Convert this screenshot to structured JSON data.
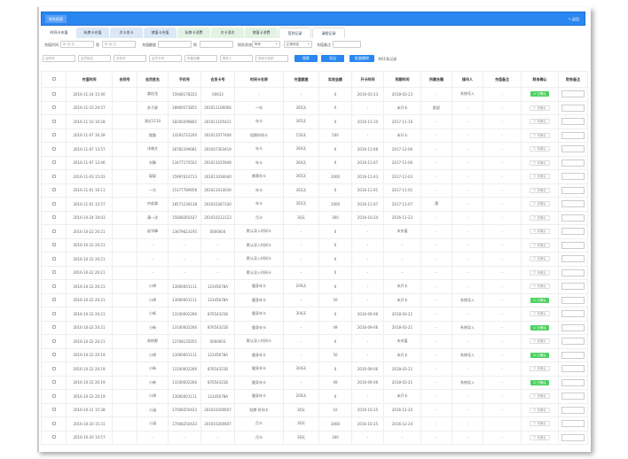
{
  "header": {
    "title": "财务报表",
    "back": "返回",
    "accent": "#2a86f0"
  },
  "tabs": [
    {
      "label": "时间卡充值",
      "style": "active"
    },
    {
      "label": "私教卡充值",
      "style": ""
    },
    {
      "label": "次卡发卡",
      "style": ""
    },
    {
      "label": "储值卡充值",
      "style": ""
    },
    {
      "label": "私教卡消费",
      "style": "green"
    },
    {
      "label": "次卡消次",
      "style": "green"
    },
    {
      "label": "储值卡消费",
      "style": "green"
    },
    {
      "label": "签到记录",
      "style": "plain"
    },
    {
      "label": "请假记录",
      "style": "plain"
    }
  ],
  "filters": {
    "time_label": "充值时间",
    "date_placeholder": "年-月-日",
    "to": "到",
    "amount_label": "充值额度",
    "status_label": "财务状态",
    "status_value": "所有",
    "state_value": "正常状态",
    "remark_label": "充值备注",
    "placeholders": [
      "合同号",
      "会员姓名",
      "手机号",
      "会员卡号",
      "所属合籍",
      "操作人",
      "时间卡名称"
    ],
    "search": "搜索",
    "export": "导出",
    "batch_delete": "批量删除",
    "total": "共61条记录"
  },
  "table": {
    "columns": [
      "充值时间",
      "合同号",
      "会员姓名",
      "手机号",
      "会员卡号",
      "时间卡名称",
      "充值额度",
      "实收金额",
      "开卡时间",
      "到期时间",
      "所属合籍",
      "操作人",
      "充值备注",
      "财务确认",
      "财务备注"
    ],
    "confirmed": "已确认",
    "unconfirmed": "未确认",
    "note_value": "-",
    "rows": [
      [
        "2016-11-14 15:40",
        "",
        "姜松龙",
        "15948178222",
        "00633",
        "-",
        "-",
        "0",
        "2016-03-23",
        "2018-03-23",
        "-",
        "系统导入",
        "-",
        1
      ],
      [
        "2016-11-10 20:57",
        "",
        "苏子豪",
        "18900573855",
        "201611106066",
        "一年",
        "365天",
        "0",
        "-",
        "未开卡",
        "影部",
        "-",
        "-",
        0
      ],
      [
        "2016-11-10 10:28",
        "",
        "测试1110",
        "18200299802",
        "201611105421",
        "年卡",
        "365天",
        "0",
        "2016-11-10",
        "2017-11-10",
        "-",
        "-",
        "-",
        0
      ],
      [
        "2016-11-07 16:39",
        "",
        "樊豁",
        "13293722200",
        "201611077408",
        "短期时间卡",
        "150天",
        "500",
        "-",
        "未开卡",
        "-",
        "-",
        "-",
        0
      ],
      [
        "2016-11-07 13:57",
        "",
        "沐晓文",
        "18782199081",
        "201607303419",
        "年卡",
        "364天",
        "0",
        "2016-11-06",
        "2017-12-06",
        "-",
        "-",
        "-",
        0
      ],
      [
        "2016-11-07 13:46",
        "",
        "刘擎",
        "13477170502",
        "201611035948",
        "年卡",
        "364天",
        "0",
        "2016-11-07",
        "2017-11-06",
        "-",
        "-",
        "-",
        0
      ],
      [
        "2016-11-03 15:03",
        "",
        "琨琨",
        "15997610713",
        "201611036040",
        "紫薇年卡",
        "365天",
        "2000",
        "2016-11-03",
        "2017-11-03",
        "-",
        "-",
        "-",
        0
      ],
      [
        "2016-11-01 16:11",
        "",
        "一力",
        "15177789958",
        "201611014039",
        "年卡",
        "365天",
        "0",
        "2016-11-01",
        "2017-11-01",
        "-",
        "-",
        "-",
        0
      ],
      [
        "2016-11-01 15:57",
        "",
        "何若璐",
        "18571239138",
        "201610287330",
        "年卡",
        "365天",
        "1000",
        "2016-11-07",
        "2017-11-07",
        "蒲",
        "-",
        "-",
        0
      ],
      [
        "2016-10-24 19:03",
        "",
        "满一洋",
        "15608265437",
        "201610212123",
        "月卡",
        "30天",
        "300",
        "2016-10-24",
        "2016-11-23",
        "-",
        "-",
        "-",
        0
      ],
      [
        "2016-10-22 20:21",
        "",
        "赵学峰",
        "13679623195",
        "0000004",
        "默认导入时间卡",
        "-",
        "0",
        "-",
        "未充值",
        "-",
        "-",
        "-",
        0
      ],
      [
        "2016-10-22 20:21",
        "",
        "-",
        "-",
        "-",
        "默认导入时间卡",
        "-",
        "0",
        "-",
        "-",
        "-",
        "-",
        "-",
        0
      ],
      [
        "2016-10-22 20:21",
        "",
        "-",
        "-",
        "-",
        "默认导入时间卡",
        "-",
        "0",
        "-",
        "-",
        "-",
        "-",
        "-",
        0
      ],
      [
        "2016-10-22 20:21",
        "",
        "-",
        "-",
        "-",
        "默认导入时间卡",
        "-",
        "0",
        "-",
        "-",
        "-",
        "-",
        "-",
        0
      ],
      [
        "2016-10-22 20:21",
        "",
        "小律",
        "13000001111",
        "12345678A",
        "健身年卡",
        "200天",
        "0",
        "-",
        "未开卡",
        "-",
        "-",
        "-",
        0
      ],
      [
        "2016-10-22 20:21",
        "",
        "小律",
        "13000001111",
        "12345678A",
        "健身年卡",
        "-",
        "50",
        "-",
        "未开卡",
        "-",
        "系统导入",
        "-",
        1
      ],
      [
        "2016-10-22 20:21",
        "",
        "小新",
        "13100002266",
        "87654321B",
        "健身年卡",
        "304天",
        "0",
        "2016-09-06",
        "2018-03-21",
        "-",
        "-",
        "-",
        0
      ],
      [
        "2016-10-22 20:21",
        "",
        "小新",
        "13100002266",
        "87654321B",
        "健身年卡",
        "-",
        "49",
        "2016-09-06",
        "2018-03-21",
        "-",
        "系统导入",
        "-",
        1
      ],
      [
        "2016-10-22 20:21",
        "",
        "易府野",
        "13708135055",
        "0000003",
        "默认导入时间卡",
        "-",
        "0",
        "-",
        "未充值",
        "-",
        "-",
        "-",
        0
      ],
      [
        "2016-10-22 20:19",
        "",
        "小律",
        "13000001111",
        "12345678A",
        "健身年卡",
        "-",
        "50",
        "-",
        "未开卡",
        "-",
        "系统导入",
        "-",
        1
      ],
      [
        "2016-10-22 20:19",
        "",
        "小新",
        "13100002266",
        "87654321B",
        "健身年卡",
        "304天",
        "0",
        "2016-09-06",
        "2018-03-21",
        "-",
        "-",
        "-",
        0
      ],
      [
        "2016-10-22 20:19",
        "",
        "小新",
        "13100002266",
        "87654321B",
        "健身年卡",
        "-",
        "49",
        "2016-09-06",
        "2018-03-21",
        "-",
        "系统导入",
        "-",
        1
      ],
      [
        "2016-10-22 20:19",
        "",
        "小律",
        "13000001111",
        "12345678A",
        "健身年卡",
        "200天",
        "0",
        "-",
        "未开卡",
        "-",
        "-",
        "-",
        0
      ],
      [
        "2016-10-21 15:38",
        "",
        "小涵",
        "17008250433",
        "201610200607",
        "短期 时间卡",
        "30天",
        "10",
        "2016-10-25",
        "2016-12-24",
        "-",
        "-",
        "-",
        0
      ],
      [
        "2016-10-20 15:31",
        "",
        "小涵",
        "17008250433",
        "201610200607",
        "月卡",
        "30天",
        "3000",
        "2016-10-25",
        "2016-12-24",
        "-",
        "-",
        "-",
        0
      ],
      [
        "2016-10-20 10:57",
        "",
        "-",
        "-",
        "-",
        "月卡",
        "30天",
        "300",
        "-",
        "-",
        "-",
        "-",
        "-",
        0
      ]
    ]
  }
}
